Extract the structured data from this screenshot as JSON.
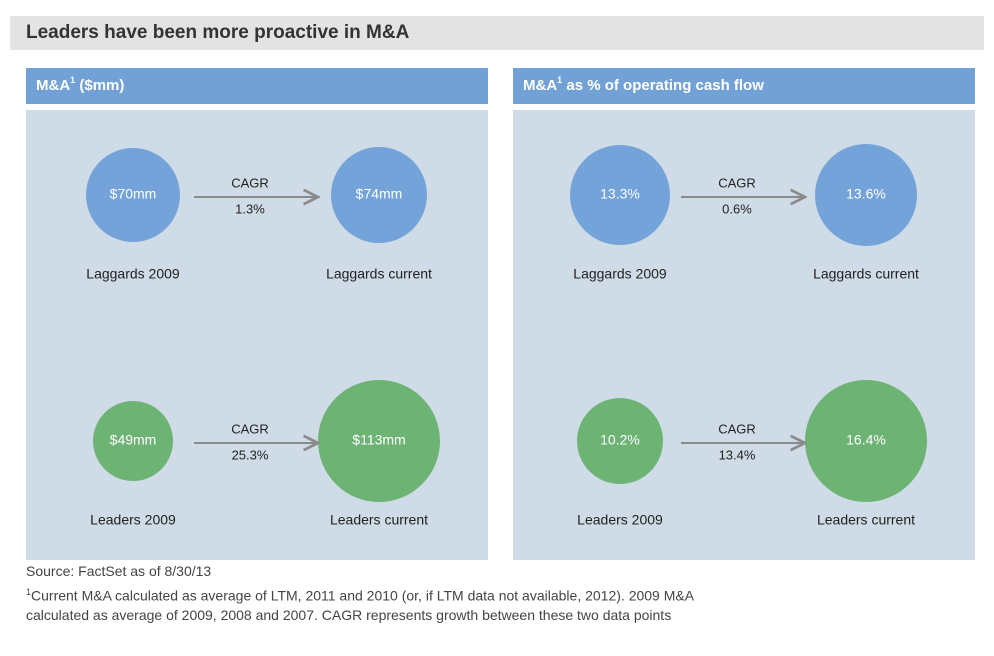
{
  "title": "Leaders have been more proactive in M&A",
  "panels": [
    {
      "header": {
        "main": "M&A",
        "sup": "1",
        "rest": " ($mm)"
      },
      "rows": [
        {
          "start": {
            "value": "$70mm",
            "label": "Laggards 2009"
          },
          "cagr_label": "CAGR",
          "cagr": "1.3%",
          "end": {
            "value": "$74mm",
            "label": "Laggards current"
          }
        },
        {
          "start": {
            "value": "$49mm",
            "label": "Leaders 2009"
          },
          "cagr_label": "CAGR",
          "cagr": "25.3%",
          "end": {
            "value": "$113mm",
            "label": "Leaders current"
          }
        }
      ]
    },
    {
      "header": {
        "main": "M&A",
        "sup": "1",
        "rest": " as % of operating cash flow"
      },
      "rows": [
        {
          "start": {
            "value": "13.3%",
            "label": "Laggards 2009"
          },
          "cagr_label": "CAGR",
          "cagr": "0.6%",
          "end": {
            "value": "13.6%",
            "label": "Laggards current"
          }
        },
        {
          "start": {
            "value": "10.2%",
            "label": "Leaders 2009"
          },
          "cagr_label": "CAGR",
          "cagr": "13.4%",
          "end": {
            "value": "16.4%",
            "label": "Leaders current"
          }
        }
      ]
    }
  ],
  "source": "Source: FactSet as of 8/30/13",
  "footnote": {
    "mark": "1",
    "text": "Current M&A calculated as average of LTM, 2011 and 2010 (or, if LTM data not available, 2012). 2009 M&A calculated as average of 2009, 2008 and 2007. CAGR represents growth between these two data points"
  }
}
